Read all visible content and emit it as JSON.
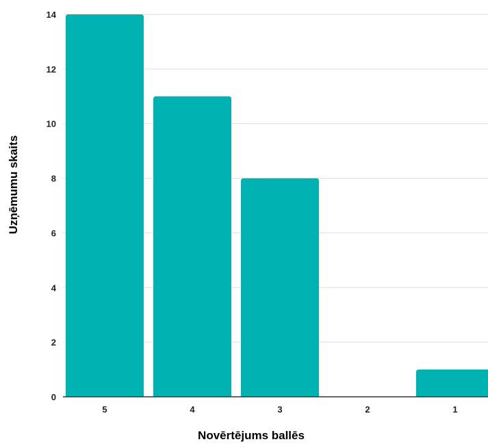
{
  "chart_data": {
    "type": "bar",
    "title": "",
    "xlabel": "Novērtējums ballēs",
    "ylabel": "Uzņēmumu skaits",
    "categories": [
      "5",
      "4",
      "3",
      "2",
      "1"
    ],
    "values": [
      14,
      11,
      8,
      0,
      1
    ],
    "ylim": [
      0,
      14
    ],
    "yticks": [
      "0",
      "2",
      "4",
      "6",
      "8",
      "10",
      "12",
      "14"
    ],
    "grid": true,
    "legend": "none",
    "colors": {
      "bar": "#00B2B2",
      "grid": "#DDDDDD",
      "axis": "#333333"
    }
  }
}
